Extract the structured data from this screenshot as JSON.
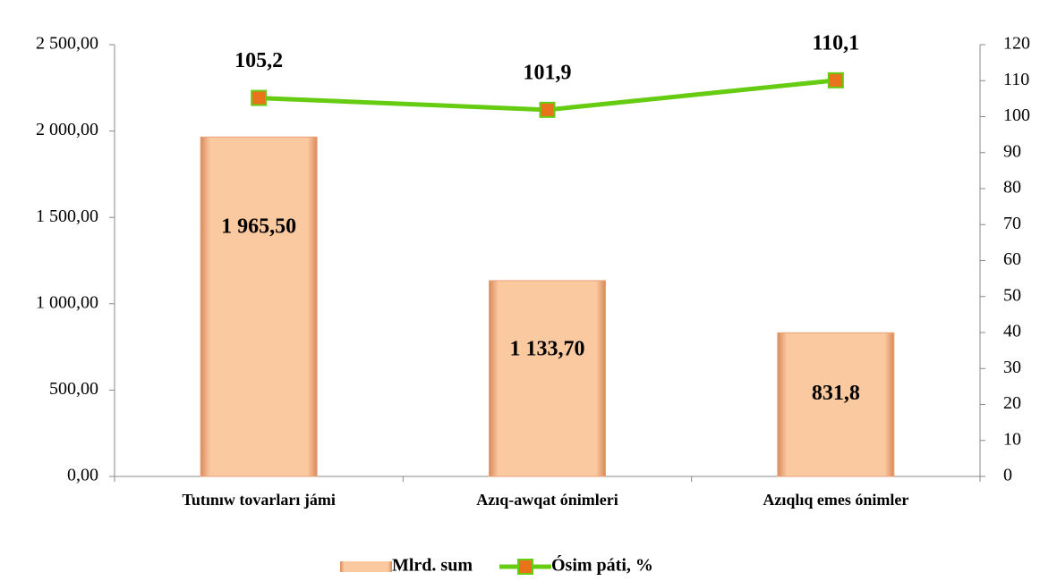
{
  "chart_data": {
    "type": "bar",
    "categories": [
      "Tutınıw tovarları jámi",
      "Azıq-awqat ónimleri",
      "Azıqlıq emes ónimler"
    ],
    "series": [
      {
        "name": "Mlrd. sum",
        "type": "bar",
        "color": "#fbc9a0",
        "values": [
          1965.5,
          1133.7,
          831.8
        ],
        "value_labels": [
          "1 965,50",
          "1 133,70",
          "831,8"
        ]
      },
      {
        "name": "Ósim páti, %",
        "type": "line",
        "axis": "y2",
        "color": "#66cc11",
        "marker_color": "#e8731a",
        "values": [
          105.2,
          101.9,
          110.1
        ],
        "value_labels": [
          "105,2",
          "101,9",
          "110,1"
        ]
      }
    ],
    "ylim": [
      0,
      2500
    ],
    "yticks": [
      {
        "value": 0,
        "label": "0,00"
      },
      {
        "value": 500,
        "label": "500,00"
      },
      {
        "value": 1000,
        "label": "1 000,00"
      },
      {
        "value": 1500,
        "label": "1 500,00"
      },
      {
        "value": 2000,
        "label": "2 000,00"
      },
      {
        "value": 2500,
        "label": "2 500,00"
      }
    ],
    "y2lim": [
      0,
      120
    ],
    "y2ticks": [
      0,
      10,
      20,
      30,
      40,
      50,
      60,
      70,
      80,
      90,
      100,
      110,
      120
    ],
    "legend": "bottom"
  }
}
